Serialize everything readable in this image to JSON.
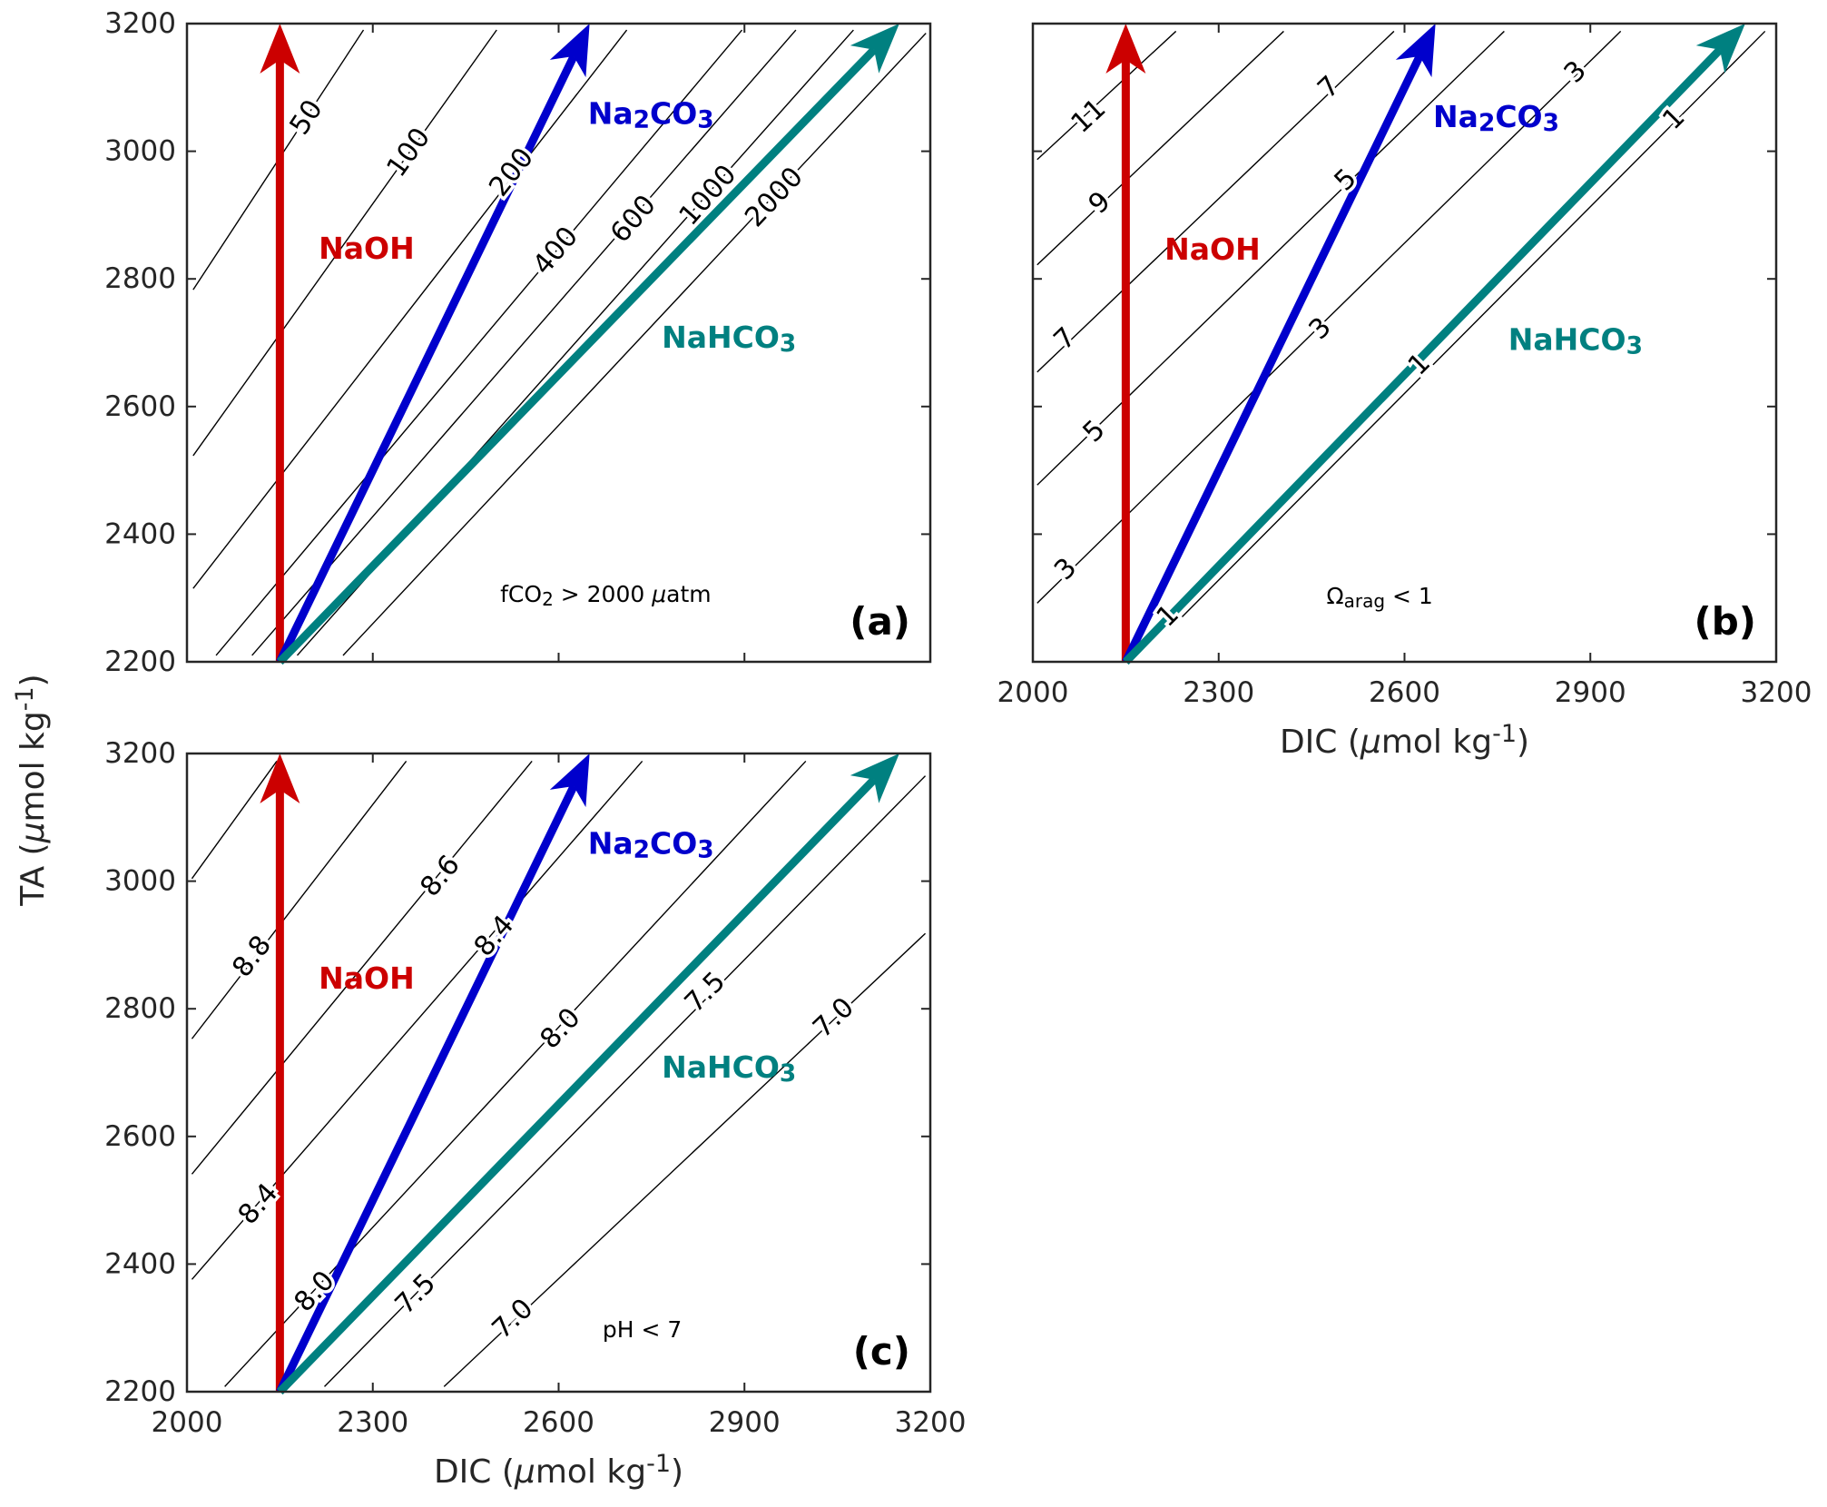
{
  "colors": {
    "NaOH": "#cc0000",
    "Na2CO3": "#0000cc",
    "NaHCO3": "#008080",
    "contour": "#000000",
    "axis": "#262626"
  },
  "axes": {
    "x_label_parts": [
      {
        "t": "DIC ("
      },
      {
        "t": "μ",
        "italic": true
      },
      {
        "t": "mol kg"
      },
      {
        "t": "-1",
        "sup": true
      },
      {
        "t": ")"
      }
    ],
    "y_label_parts": [
      {
        "t": "TA ("
      },
      {
        "t": "μ",
        "italic": true
      },
      {
        "t": "mol kg"
      },
      {
        "t": "-1",
        "sup": true
      },
      {
        "t": ")"
      }
    ]
  },
  "chart_data": [
    {
      "type": "line",
      "panel": "(a)",
      "xlim": [
        2000,
        3200
      ],
      "ylim": [
        2200,
        3200
      ],
      "xticks": [
        2000,
        2300,
        2600,
        2900,
        3200
      ],
      "yticks": [
        2200,
        2400,
        2600,
        2800,
        3000,
        3200
      ],
      "show_xticklabels": false,
      "show_yticklabels": true,
      "show_xlabel": false,
      "note_parts": [
        {
          "t": "fCO"
        },
        {
          "t": "2",
          "sub": true
        },
        {
          "t": " > 2000 "
        },
        {
          "t": "μ",
          "italic": true
        },
        {
          "t": "atm"
        }
      ],
      "note_at": [
        2676,
        2307
      ],
      "contours": [
        {
          "level": "50",
          "line": [
            [
              2010,
              2783
            ],
            [
              2285,
              3190
            ]
          ],
          "labels": [
            [
              2193,
              3053
            ]
          ]
        },
        {
          "level": "100",
          "line": [
            [
              2010,
              2523
            ],
            [
              2500,
              3190
            ]
          ],
          "labels": [
            [
              2358,
              2998
            ]
          ]
        },
        {
          "level": "200",
          "line": [
            [
              2010,
              2315
            ],
            [
              2710,
              3190
            ]
          ],
          "labels": [
            [
              2524,
              2967
            ]
          ]
        },
        {
          "level": "400",
          "line": [
            [
              2047,
              2210
            ],
            [
              2896,
              3190
            ]
          ],
          "labels": [
            [
              2680,
              2942
            ]
          ]
        },
        {
          "level": "600",
          "line": [
            [
              2105,
              2210
            ],
            [
              2983,
              3190
            ]
          ],
          "labels": [
            [
              2764,
              2942
            ]
          ]
        },
        {
          "level": "1000",
          "line": [
            [
              2178,
              2210
            ],
            [
              3076,
              3190
            ]
          ],
          "labels": [
            [
              2841,
              2931
            ]
          ]
        },
        {
          "level": "2000",
          "line": [
            [
              2252,
              2210
            ],
            [
              3193,
              3185
            ]
          ],
          "labels": [
            [
              2948,
              2928
            ]
          ]
        }
      ],
      "series": [
        {
          "name_parts": [
            {
              "t": "NaOH"
            }
          ],
          "key": "NaOH",
          "from": [
            2150,
            2200
          ],
          "to": [
            2150,
            3200
          ],
          "label_at": [
            2290,
            2849
          ]
        },
        {
          "name_parts": [
            {
              "t": "Na"
            },
            {
              "t": "2",
              "sub": true
            },
            {
              "t": "CO"
            },
            {
              "t": "3",
              "sub": true
            }
          ],
          "key": "Na2CO3",
          "from": [
            2150,
            2200
          ],
          "to": [
            2650,
            3200
          ],
          "label_at": [
            2749,
            3060
          ]
        },
        {
          "name_parts": [
            {
              "t": "NaHCO"
            },
            {
              "t": "3",
              "sub": true
            }
          ],
          "key": "NaHCO3",
          "from": [
            2150,
            2200
          ],
          "to": [
            3150,
            3200
          ],
          "label_at": [
            2875,
            2709
          ]
        }
      ]
    },
    {
      "type": "line",
      "panel": "(b)",
      "xlim": [
        2000,
        3200
      ],
      "ylim": [
        2200,
        3200
      ],
      "xticks": [
        2000,
        2300,
        2600,
        2900,
        3200
      ],
      "yticks": [
        2200,
        2400,
        2600,
        2800,
        3000,
        3200
      ],
      "show_xticklabels": true,
      "show_yticklabels": false,
      "show_xlabel": true,
      "note_parts": [
        {
          "t": "Ω"
        },
        {
          "t": "arag",
          "sub": true
        },
        {
          "t": " < 1"
        }
      ],
      "note_at": [
        2560,
        2304
      ],
      "contours": [
        {
          "level": "11",
          "line": [
            [
              2007,
              2987
            ],
            [
              2231,
              3188
            ]
          ],
          "labels": [
            [
              2090,
              3055
            ]
          ]
        },
        {
          "level": "9",
          "line": [
            [
              2007,
              2822
            ],
            [
              2405,
              3188
            ]
          ],
          "labels": [
            [
              2108,
              2919
            ]
          ]
        },
        {
          "level": "7",
          "line": [
            [
              2007,
              2654
            ],
            [
              2583,
              3188
            ]
          ],
          "labels": [
            [
              2052,
              2706
            ],
            [
              2478,
              3100
            ]
          ]
        },
        {
          "level": "5",
          "line": [
            [
              2007,
              2477
            ],
            [
              2761,
              3188
            ]
          ],
          "labels": [
            [
              2099,
              2561
            ],
            [
              2505,
              2955
            ]
          ]
        },
        {
          "level": "3",
          "line": [
            [
              2007,
              2292
            ],
            [
              2949,
              3188
            ]
          ],
          "labels": [
            [
              2053,
              2345
            ],
            [
              2464,
              2722
            ],
            [
              2876,
              3124
            ]
          ]
        },
        {
          "level": "1",
          "line": [
            [
              2222,
              2252
            ],
            [
              3182,
              3188
            ]
          ],
          "labels": [
            [
              2218,
              2272
            ],
            [
              2624,
              2666
            ],
            [
              3035,
              3051
            ]
          ]
        }
      ],
      "series": [
        {
          "name_parts": [
            {
              "t": "NaOH"
            }
          ],
          "key": "NaOH",
          "from": [
            2150,
            2200
          ],
          "to": [
            2150,
            3200
          ],
          "label_at": [
            2290,
            2847
          ]
        },
        {
          "name_parts": [
            {
              "t": "Na"
            },
            {
              "t": "2",
              "sub": true
            },
            {
              "t": "CO"
            },
            {
              "t": "3",
              "sub": true
            }
          ],
          "key": "Na2CO3",
          "from": [
            2150,
            2200
          ],
          "to": [
            2650,
            3200
          ],
          "label_at": [
            2748,
            3055
          ]
        },
        {
          "name_parts": [
            {
              "t": "NaHCO"
            },
            {
              "t": "3",
              "sub": true
            }
          ],
          "key": "NaHCO3",
          "from": [
            2150,
            2200
          ],
          "to": [
            3150,
            3200
          ],
          "label_at": [
            2876,
            2706
          ]
        }
      ]
    },
    {
      "type": "line",
      "panel": "(c)",
      "xlim": [
        2000,
        3200
      ],
      "ylim": [
        2200,
        3200
      ],
      "xticks": [
        2000,
        2300,
        2600,
        2900,
        3200
      ],
      "yticks": [
        2200,
        2400,
        2600,
        2800,
        3000,
        3200
      ],
      "show_xticklabels": true,
      "show_yticklabels": true,
      "show_xlabel": true,
      "note_parts": [
        {
          "t": "pH < 7"
        }
      ],
      "note_at": [
        2735,
        2298
      ],
      "contours": [
        {
          "level": "",
          "line": [
            [
              2008,
              3004
            ],
            [
              2145,
              3188
            ]
          ],
          "labels": []
        },
        {
          "level": "8.8",
          "line": [
            [
              2008,
              2753
            ],
            [
              2354,
              3188
            ]
          ],
          "labels": [
            [
              2105,
              2882
            ]
          ]
        },
        {
          "level": "8.6",
          "line": [
            [
              2008,
              2541
            ],
            [
              2557,
              3188
            ]
          ],
          "labels": [
            [
              2409,
              3008
            ]
          ]
        },
        {
          "level": "8.4",
          "line": [
            [
              2008,
              2376
            ],
            [
              2735,
              3188
            ]
          ],
          "labels": [
            [
              2115,
              2494
            ],
            [
              2496,
              2914
            ]
          ]
        },
        {
          "level": "8.0",
          "line": [
            [
              2061,
              2208
            ],
            [
              2999,
              3188
            ]
          ],
          "labels": [
            [
              2206,
              2357
            ],
            [
              2603,
              2769
            ]
          ]
        },
        {
          "level": "7.5",
          "line": [
            [
              2222,
              2208
            ],
            [
              3192,
              3165
            ]
          ],
          "labels": [
            [
              2369,
              2353
            ],
            [
              2775,
              2765
            ]
          ]
        },
        {
          "level": "7.0",
          "line": [
            [
              2415,
              2208
            ],
            [
              3192,
              2918
            ]
          ],
          "labels": [
            [
              2526,
              2314
            ],
            [
              2948,
              2698
            ]
          ]
        }
      ],
      "series": [
        {
          "name_parts": [
            {
              "t": "NaOH"
            }
          ],
          "key": "NaOH",
          "from": [
            2150,
            2200
          ],
          "to": [
            2150,
            3200
          ],
          "label_at": [
            2290,
            2849
          ]
        },
        {
          "name_parts": [
            {
              "t": "Na"
            },
            {
              "t": "2",
              "sub": true
            },
            {
              "t": "CO"
            },
            {
              "t": "3",
              "sub": true
            }
          ],
          "key": "Na2CO3",
          "from": [
            2150,
            2200
          ],
          "to": [
            2650,
            3200
          ],
          "label_at": [
            2749,
            3060
          ]
        },
        {
          "name_parts": [
            {
              "t": "NaHCO"
            },
            {
              "t": "3",
              "sub": true
            }
          ],
          "key": "NaHCO3",
          "from": [
            2150,
            2200
          ],
          "to": [
            3150,
            3200
          ],
          "label_at": [
            2875,
            2709
          ]
        }
      ]
    }
  ]
}
